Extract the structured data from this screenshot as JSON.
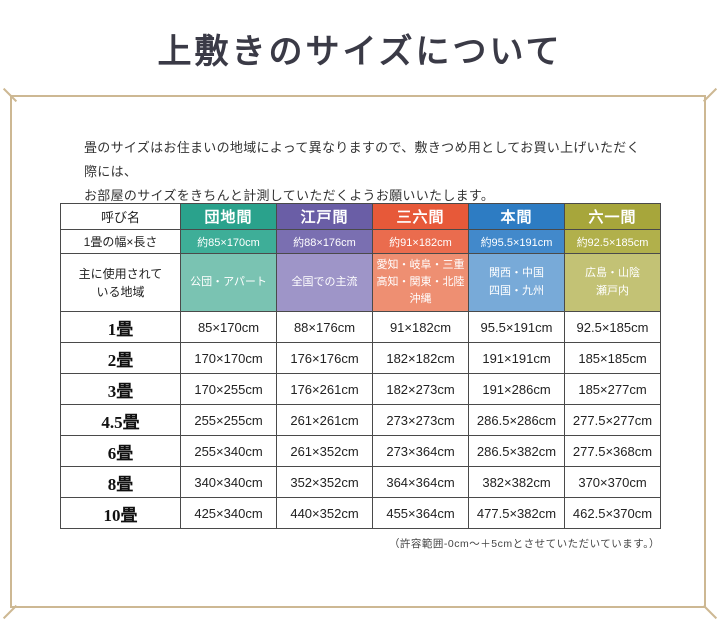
{
  "page": {
    "title": "上敷きのサイズについて",
    "intro_line1": "畳のサイズはお住まいの地域によって異なりますので、敷きつめ用としてお買い上げいただく際には、",
    "intro_line2": "お部屋のサイズをきちんと計測していただくようお願いいたします。",
    "footnote": "（許容範囲-0cm〜＋5cmとさせていただいています。）",
    "frame_color": "#cdb893"
  },
  "table": {
    "corner_header": "呼び名",
    "size_row_label": "1畳の幅×長さ",
    "region_row_label_line1": "主に使用されて",
    "region_row_label_line2": "いる地域",
    "columns": [
      {
        "name": "団地間",
        "size": "約85×170cm",
        "regions": [
          "公団・アパート",
          "",
          ""
        ],
        "colors": {
          "header": "#2aa28c",
          "size": "#3eae98",
          "region": "#7ac3b2"
        }
      },
      {
        "name": "江戸間",
        "size": "約88×176cm",
        "regions": [
          "全国での主流",
          "",
          ""
        ],
        "colors": {
          "header": "#6a5ea6",
          "size": "#7a6fb1",
          "region": "#9e95c8"
        }
      },
      {
        "name": "三六間",
        "size": "約91×182cm",
        "regions": [
          "愛知・岐阜・三重",
          "高知・関東・北陸",
          "沖縄"
        ],
        "colors": {
          "header": "#e75939",
          "size": "#ea6c4e",
          "region": "#ee8f72"
        }
      },
      {
        "name": "本間",
        "size": "約95.5×191cm",
        "regions": [
          "関西・中国",
          "四国・九州",
          ""
        ],
        "colors": {
          "header": "#2d7cc3",
          "size": "#4289cb",
          "region": "#78aad8"
        }
      },
      {
        "name": "六一間",
        "size": "約92.5×185cm",
        "regions": [
          "広島・山陰",
          "瀬戸内",
          ""
        ],
        "colors": {
          "header": "#a7a63b",
          "size": "#b1b04b",
          "region": "#c3c275"
        }
      }
    ],
    "size_rows": [
      {
        "label": "1畳",
        "values": [
          "85×170cm",
          "88×176cm",
          "91×182cm",
          "95.5×191cm",
          "92.5×185cm"
        ]
      },
      {
        "label": "2畳",
        "values": [
          "170×170cm",
          "176×176cm",
          "182×182cm",
          "191×191cm",
          "185×185cm"
        ]
      },
      {
        "label": "3畳",
        "values": [
          "170×255cm",
          "176×261cm",
          "182×273cm",
          "191×286cm",
          "185×277cm"
        ]
      },
      {
        "label": "4.5畳",
        "values": [
          "255×255cm",
          "261×261cm",
          "273×273cm",
          "286.5×286cm",
          "277.5×277cm"
        ]
      },
      {
        "label": "6畳",
        "values": [
          "255×340cm",
          "261×352cm",
          "273×364cm",
          "286.5×382cm",
          "277.5×368cm"
        ]
      },
      {
        "label": "8畳",
        "values": [
          "340×340cm",
          "352×352cm",
          "364×364cm",
          "382×382cm",
          "370×370cm"
        ]
      },
      {
        "label": "10畳",
        "values": [
          "425×340cm",
          "440×352cm",
          "455×364cm",
          "477.5×382cm",
          "462.5×370cm"
        ]
      }
    ]
  }
}
